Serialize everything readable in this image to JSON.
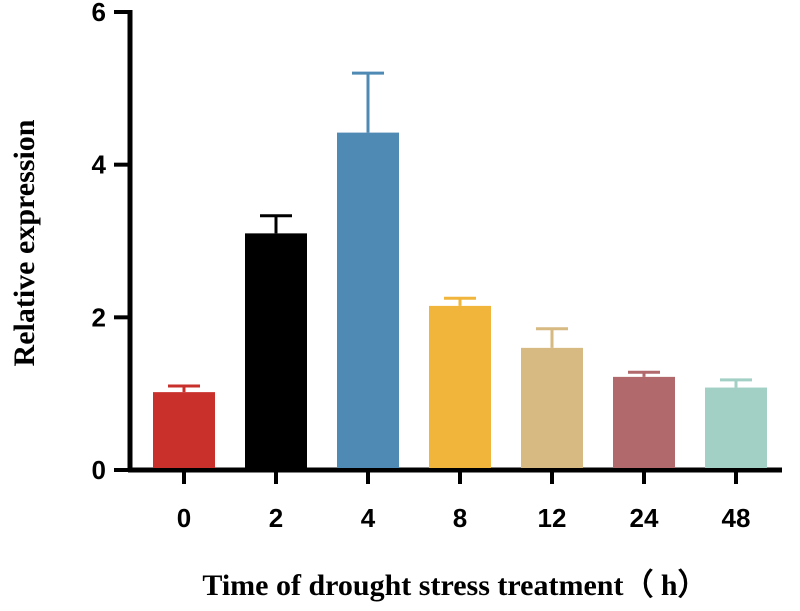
{
  "chart_data": {
    "type": "bar",
    "title": "",
    "xlabel": "Time of drought stress treatment（ h）",
    "ylabel": "Relative expression",
    "ylim": [
      0,
      6
    ],
    "yticks": [
      0,
      2,
      4,
      6
    ],
    "categories": [
      "0",
      "2",
      "4",
      "8",
      "12",
      "24",
      "48"
    ],
    "values": [
      1.02,
      3.1,
      4.42,
      2.15,
      1.6,
      1.22,
      1.08
    ],
    "errors": [
      0.08,
      0.23,
      0.78,
      0.1,
      0.25,
      0.06,
      0.1
    ],
    "colors": [
      "#c9302c",
      "#000000",
      "#4f8ab4",
      "#f1b53b",
      "#d7b982",
      "#b1696b",
      "#a3d0c4"
    ],
    "grid": false,
    "legend": "none"
  }
}
